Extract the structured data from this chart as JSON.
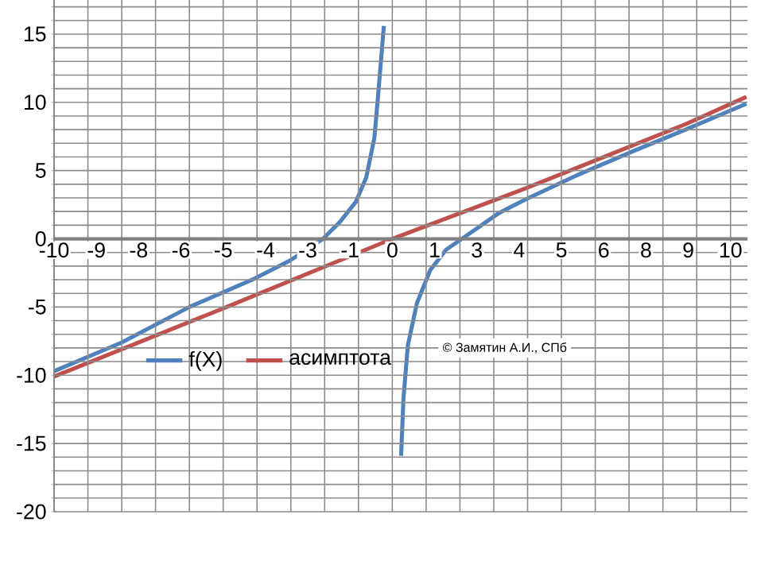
{
  "chart_data": {
    "type": "line",
    "xlim": [
      -10,
      10.5
    ],
    "ylim": [
      -20,
      17.5
    ],
    "xticks": [
      -10,
      {
        "value": -8.75,
        "label": "-9"
      },
      {
        "value": -7.5,
        "label": "-8"
      },
      {
        "value": -6.25,
        "label": "-6"
      },
      -5,
      {
        "value": -3.75,
        "label": "-4"
      },
      {
        "value": -2.5,
        "label": "-3"
      },
      {
        "value": -1.25,
        "label": "-1"
      },
      0,
      {
        "value": 1.25,
        "label": "1"
      },
      {
        "value": 2.5,
        "label": "3"
      },
      {
        "value": 3.75,
        "label": "4"
      },
      5,
      {
        "value": 6.25,
        "label": "6"
      },
      {
        "value": 7.5,
        "label": "8"
      },
      {
        "value": 8.75,
        "label": "9"
      },
      10
    ],
    "yticks": [
      -20,
      -15,
      -10,
      -5,
      0,
      5,
      10,
      15
    ],
    "grid": true,
    "legend": "bottom left",
    "line_style": "solid",
    "series": [
      {
        "name": "f(X)",
        "color": "#4f81bd",
        "x": [
          -10,
          -8,
          -6,
          -4.06,
          -3.03,
          -2.05,
          -1.56,
          -1.08,
          -0.77,
          -0.53,
          -0.42,
          -0.25,
          0,
          0.26,
          0.33,
          0.46,
          0.73,
          1.12,
          1.59,
          2.06,
          3.16,
          3.95,
          5.5,
          7.1,
          8.67,
          10.47
        ],
        "values": [
          -9.7,
          -7.6,
          -5,
          -2.9,
          -1.6,
          0,
          1.2,
          2.7,
          4.5,
          7.4,
          10.5,
          15.6,
          null,
          -15.9,
          -11.7,
          -7.8,
          -4.7,
          -2.3,
          -0.8,
          0,
          1.9,
          2.9,
          4.7,
          6.4,
          8,
          9.9
        ]
      },
      {
        "name": "асимптота",
        "color": "#c0504d",
        "x": [
          -10,
          -5,
          0,
          3.95,
          8.67,
          10.47
        ],
        "values": [
          -10.1,
          -5.1,
          0,
          3.7,
          8.4,
          10.4
        ]
      }
    ],
    "annotations": [
      "© Замятин А.И., СПб"
    ]
  }
}
